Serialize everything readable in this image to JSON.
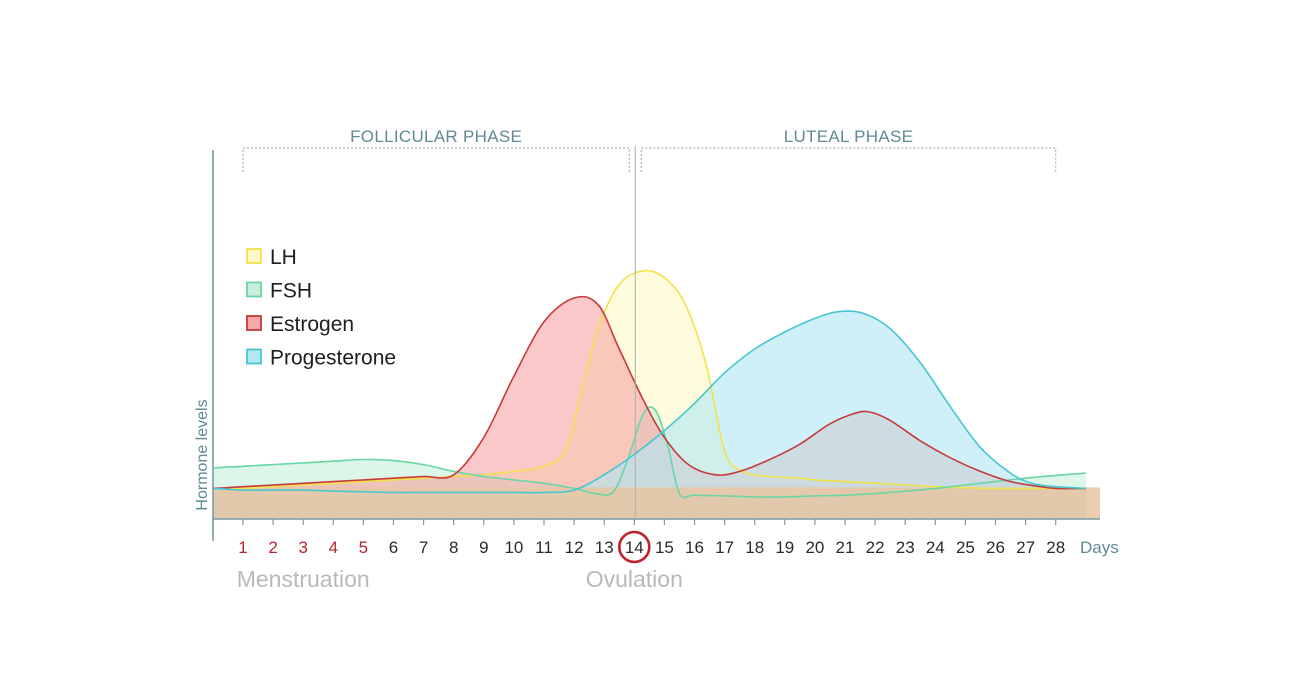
{
  "chart_data": {
    "type": "area",
    "title": "",
    "xlabel": "",
    "x_units": "Days",
    "ylabel": "Hormone levels",
    "x": [
      1,
      2,
      3,
      4,
      5,
      6,
      7,
      8,
      9,
      10,
      11,
      12,
      13,
      14,
      15,
      16,
      17,
      18,
      19,
      20,
      21,
      22,
      23,
      24,
      25,
      26,
      27,
      28
    ],
    "x_ticks": [
      "1",
      "2",
      "3",
      "4",
      "5",
      "6",
      "7",
      "8",
      "9",
      "10",
      "11",
      "12",
      "13",
      "14",
      "15",
      "16",
      "17",
      "18",
      "19",
      "20",
      "21",
      "22",
      "23",
      "24",
      "25",
      "26",
      "27",
      "28"
    ],
    "highlight_days": [
      1,
      2,
      3,
      4,
      5
    ],
    "circled_day": 14,
    "xlim": [
      0,
      29
    ],
    "ylim": [
      0,
      10
    ],
    "grid": false,
    "legend_position": "top-left",
    "phases": [
      {
        "label": "FOLLICULAR PHASE",
        "start": 1,
        "end": 14
      },
      {
        "label": "LUTEAL PHASE",
        "start": 14,
        "end": 28
      }
    ],
    "ovulation_day": 14,
    "annotations": [
      {
        "text": "Menstruation",
        "day": 3
      },
      {
        "text": "Ovulation",
        "day": 14
      }
    ],
    "series": [
      {
        "name": "LH",
        "color": "#f2e24a",
        "fill": "#fff9c8",
        "points": [
          [
            -1,
            0.9
          ],
          [
            0,
            0.9
          ],
          [
            1,
            0.9
          ],
          [
            2,
            0.95
          ],
          [
            3,
            1.0
          ],
          [
            4,
            1.05
          ],
          [
            5,
            1.1
          ],
          [
            6,
            1.15
          ],
          [
            7,
            1.2
          ],
          [
            8,
            1.25
          ],
          [
            9,
            1.3
          ],
          [
            10,
            1.4
          ],
          [
            11,
            1.55
          ],
          [
            11.7,
            2.0
          ],
          [
            12.2,
            3.6
          ],
          [
            12.8,
            5.6
          ],
          [
            13.5,
            6.9
          ],
          [
            14.3,
            7.3
          ],
          [
            15.0,
            7.1
          ],
          [
            15.7,
            6.3
          ],
          [
            16.4,
            4.5
          ],
          [
            17.0,
            2.0
          ],
          [
            17.6,
            1.4
          ],
          [
            18.5,
            1.25
          ],
          [
            19.5,
            1.2
          ],
          [
            20,
            1.15
          ],
          [
            21,
            1.1
          ],
          [
            22,
            1.05
          ],
          [
            23,
            1.0
          ],
          [
            24,
            0.95
          ],
          [
            25,
            0.92
          ],
          [
            26,
            0.9
          ],
          [
            27,
            0.9
          ],
          [
            28,
            0.9
          ],
          [
            29,
            0.9
          ]
        ]
      },
      {
        "name": "FSH",
        "color": "#68d6a6",
        "fill": "#c6f0dc",
        "points": [
          [
            -1,
            1.4
          ],
          [
            0,
            1.5
          ],
          [
            1,
            1.55
          ],
          [
            2,
            1.6
          ],
          [
            3,
            1.65
          ],
          [
            4,
            1.7
          ],
          [
            5,
            1.75
          ],
          [
            6,
            1.72
          ],
          [
            7,
            1.6
          ],
          [
            8,
            1.4
          ],
          [
            9,
            1.25
          ],
          [
            10,
            1.15
          ],
          [
            11,
            1.05
          ],
          [
            12,
            0.9
          ],
          [
            12.7,
            0.75
          ],
          [
            13.3,
            0.8
          ],
          [
            13.8,
            1.8
          ],
          [
            14.3,
            3.1
          ],
          [
            14.7,
            3.2
          ],
          [
            15.1,
            2.2
          ],
          [
            15.5,
            0.75
          ],
          [
            16,
            0.7
          ],
          [
            17,
            0.68
          ],
          [
            18,
            0.65
          ],
          [
            19,
            0.65
          ],
          [
            20,
            0.68
          ],
          [
            21,
            0.7
          ],
          [
            22,
            0.75
          ],
          [
            23,
            0.82
          ],
          [
            24,
            0.9
          ],
          [
            25,
            1.0
          ],
          [
            26,
            1.1
          ],
          [
            27,
            1.2
          ],
          [
            28,
            1.28
          ],
          [
            29,
            1.35
          ]
        ]
      },
      {
        "name": "Estrogen",
        "color": "#c73a3a",
        "fill": "#f7a7a7",
        "points": [
          [
            -1,
            0.9
          ],
          [
            0,
            0.9
          ],
          [
            1,
            0.95
          ],
          [
            2,
            1.0
          ],
          [
            3,
            1.05
          ],
          [
            4,
            1.1
          ],
          [
            5,
            1.15
          ],
          [
            6,
            1.2
          ],
          [
            7,
            1.25
          ],
          [
            8,
            1.3
          ],
          [
            9,
            2.4
          ],
          [
            10,
            4.2
          ],
          [
            11,
            5.8
          ],
          [
            12,
            6.5
          ],
          [
            12.8,
            6.3
          ],
          [
            13.5,
            5.0
          ],
          [
            14.3,
            3.5
          ],
          [
            15.0,
            2.4
          ],
          [
            15.8,
            1.6
          ],
          [
            16.7,
            1.3
          ],
          [
            17.5,
            1.4
          ],
          [
            18.5,
            1.75
          ],
          [
            19.5,
            2.2
          ],
          [
            20.5,
            2.8
          ],
          [
            21.3,
            3.1
          ],
          [
            21.8,
            3.15
          ],
          [
            22.5,
            2.9
          ],
          [
            23.5,
            2.3
          ],
          [
            24.5,
            1.8
          ],
          [
            25.5,
            1.4
          ],
          [
            26.5,
            1.1
          ],
          [
            27.5,
            0.95
          ],
          [
            28,
            0.9
          ],
          [
            29,
            0.9
          ]
        ]
      },
      {
        "name": "Progesterone",
        "color": "#46c6d2",
        "fill": "#b2e7f3",
        "points": [
          [
            -1,
            0.9
          ],
          [
            0,
            0.9
          ],
          [
            1,
            0.85
          ],
          [
            2,
            0.85
          ],
          [
            3,
            0.85
          ],
          [
            4,
            0.82
          ],
          [
            5,
            0.8
          ],
          [
            6,
            0.78
          ],
          [
            7,
            0.78
          ],
          [
            8,
            0.78
          ],
          [
            9,
            0.78
          ],
          [
            10,
            0.78
          ],
          [
            11,
            0.78
          ],
          [
            12,
            0.85
          ],
          [
            13,
            1.3
          ],
          [
            14,
            1.9
          ],
          [
            15,
            2.6
          ],
          [
            16,
            3.4
          ],
          [
            17,
            4.3
          ],
          [
            18,
            5.0
          ],
          [
            19,
            5.5
          ],
          [
            20,
            5.9
          ],
          [
            20.8,
            6.1
          ],
          [
            21.6,
            6.05
          ],
          [
            22.5,
            5.6
          ],
          [
            23.5,
            4.6
          ],
          [
            24.5,
            3.3
          ],
          [
            25.5,
            2.1
          ],
          [
            26.5,
            1.35
          ],
          [
            27.2,
            1.05
          ],
          [
            28,
            0.95
          ],
          [
            29,
            0.9
          ]
        ]
      }
    ]
  }
}
